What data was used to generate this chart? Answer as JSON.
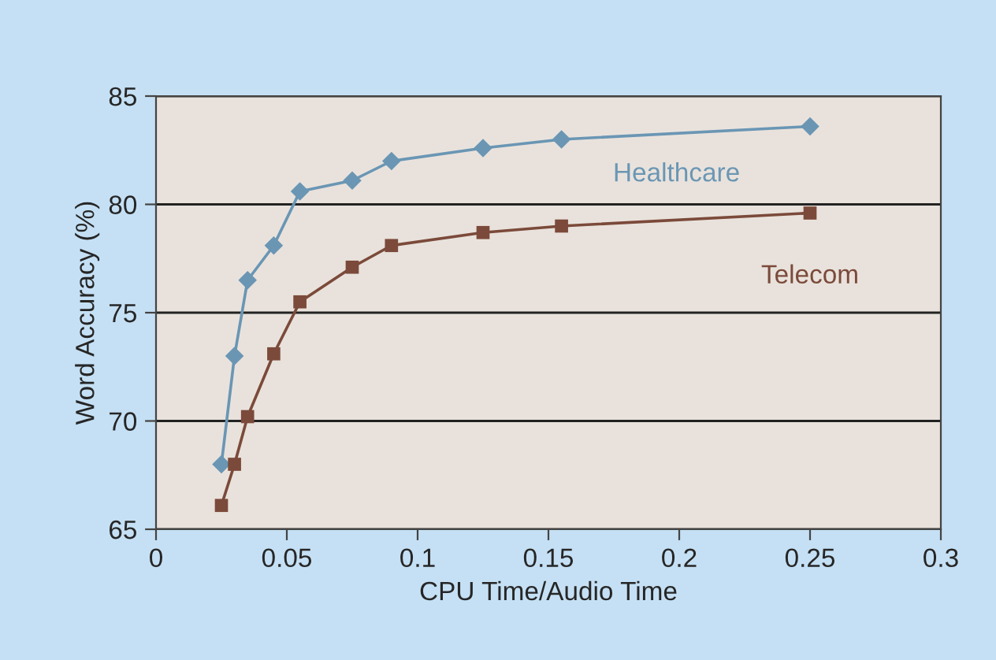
{
  "chart_data": {
    "type": "line",
    "xlabel": "CPU Time/Audio Time",
    "ylabel": "Word Accuracy (%)",
    "xlim": [
      0,
      0.3
    ],
    "xticks": [
      0,
      0.05,
      0.1,
      0.15,
      0.2,
      0.25,
      0.3
    ],
    "ylim": [
      65,
      85
    ],
    "yticks": [
      65,
      70,
      75,
      80,
      85
    ],
    "grid": "y",
    "legend": false,
    "series": [
      {
        "name": "Healthcare",
        "color": "#6a96b4",
        "marker": "diamond",
        "x": [
          0.025,
          0.03,
          0.035,
          0.045,
          0.055,
          0.075,
          0.09,
          0.125,
          0.155,
          0.25
        ],
        "values": [
          68.0,
          73.0,
          76.5,
          78.1,
          80.6,
          81.1,
          82.0,
          82.6,
          83.0,
          83.6
        ]
      },
      {
        "name": "Telecom",
        "color": "#7b4a3a",
        "marker": "square",
        "x": [
          0.025,
          0.03,
          0.035,
          0.045,
          0.055,
          0.075,
          0.09,
          0.125,
          0.155,
          0.25
        ],
        "values": [
          66.1,
          68.0,
          70.2,
          73.1,
          75.5,
          77.1,
          78.1,
          78.7,
          79.0,
          79.6
        ]
      }
    ]
  }
}
